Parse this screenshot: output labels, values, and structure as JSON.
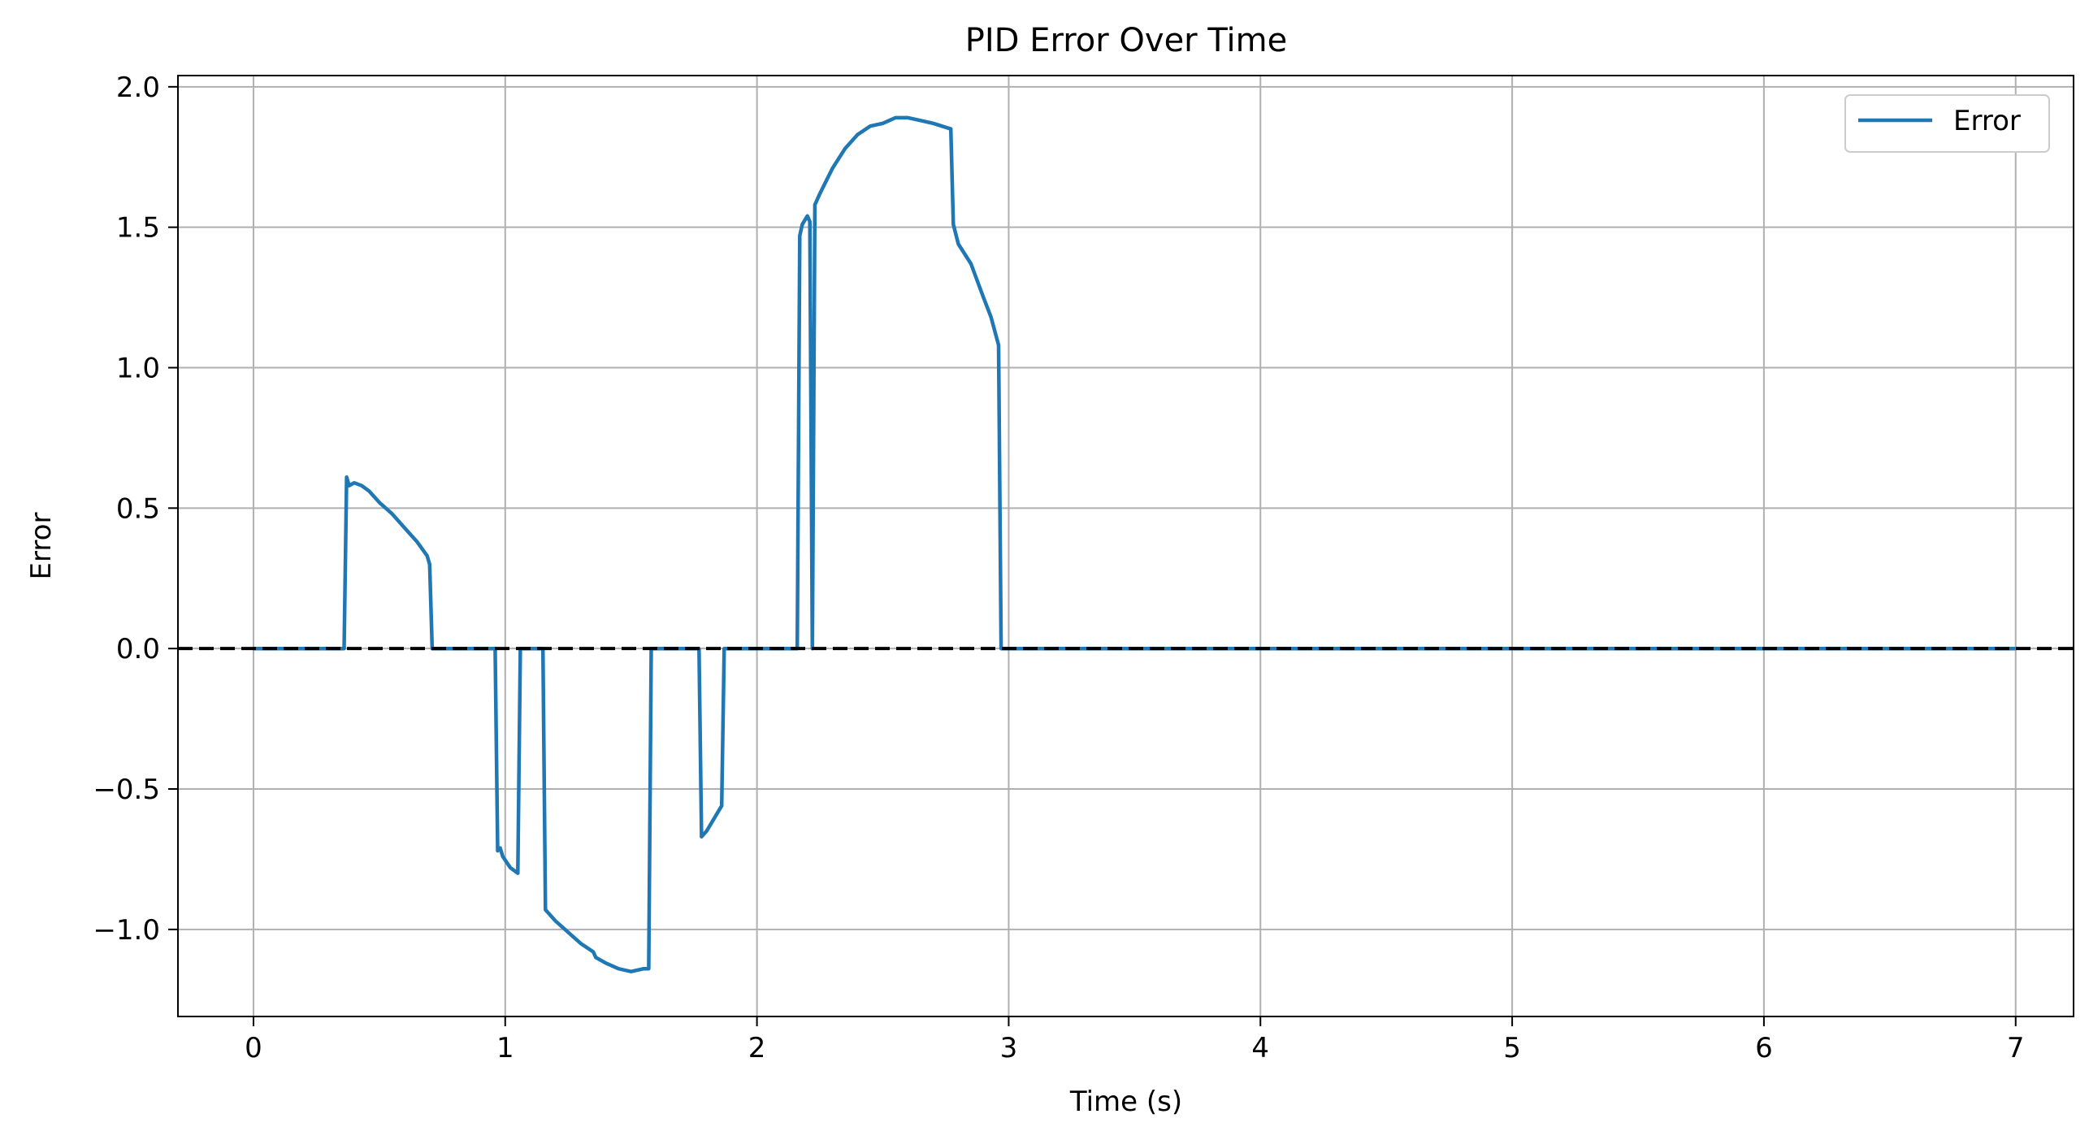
{
  "chart_data": {
    "type": "line",
    "title": "PID Error Over Time",
    "xlabel": "Time (s)",
    "ylabel": "Error",
    "xlim": [
      -0.3,
      7.23
    ],
    "ylim": [
      -1.31,
      2.04
    ],
    "xticks": [
      0,
      1,
      2,
      3,
      4,
      5,
      6,
      7
    ],
    "xtick_labels": [
      "0",
      "1",
      "2",
      "3",
      "4",
      "5",
      "6",
      "7"
    ],
    "yticks": [
      -1.0,
      -0.5,
      0.0,
      0.5,
      1.0,
      1.5,
      2.0
    ],
    "ytick_labels": [
      "−1.0",
      "−0.5",
      "0.0",
      "0.5",
      "1.0",
      "1.5",
      "2.0"
    ],
    "grid": true,
    "legend_position": "top-right",
    "reference_line": {
      "y": 0.0,
      "style": "dashed",
      "color": "#000000"
    },
    "colors": {
      "series": "#1f77b4",
      "grid": "#b0b0b0",
      "reference": "#000000"
    },
    "series": [
      {
        "name": "Error",
        "x": [
          0.0,
          0.36,
          0.37,
          0.38,
          0.4,
          0.43,
          0.46,
          0.5,
          0.55,
          0.6,
          0.65,
          0.69,
          0.7,
          0.71,
          0.96,
          0.97,
          0.98,
          0.99,
          1.02,
          1.05,
          1.06,
          1.15,
          1.16,
          1.2,
          1.25,
          1.3,
          1.35,
          1.36,
          1.4,
          1.45,
          1.5,
          1.55,
          1.57,
          1.58,
          1.59,
          1.77,
          1.78,
          1.8,
          1.86,
          1.87,
          2.16,
          2.17,
          2.18,
          2.2,
          2.21,
          2.22,
          2.23,
          2.25,
          2.3,
          2.35,
          2.4,
          2.45,
          2.5,
          2.55,
          2.6,
          2.65,
          2.7,
          2.77,
          2.78,
          2.8,
          2.85,
          2.9,
          2.93,
          2.96,
          2.97,
          7.0
        ],
        "y": [
          0.0,
          0.0,
          0.61,
          0.58,
          0.59,
          0.58,
          0.56,
          0.52,
          0.48,
          0.43,
          0.38,
          0.33,
          0.3,
          0.0,
          0.0,
          -0.72,
          -0.71,
          -0.74,
          -0.78,
          -0.8,
          0.0,
          0.0,
          -0.93,
          -0.97,
          -1.01,
          -1.05,
          -1.08,
          -1.1,
          -1.12,
          -1.14,
          -1.15,
          -1.14,
          -1.14,
          0.0,
          0.0,
          0.0,
          -0.67,
          -0.65,
          -0.56,
          0.0,
          0.0,
          1.47,
          1.51,
          1.54,
          1.52,
          0.0,
          1.58,
          1.62,
          1.71,
          1.78,
          1.83,
          1.86,
          1.87,
          1.89,
          1.89,
          1.88,
          1.87,
          1.85,
          1.51,
          1.44,
          1.37,
          1.25,
          1.18,
          1.08,
          0.0,
          0.0
        ]
      }
    ]
  }
}
